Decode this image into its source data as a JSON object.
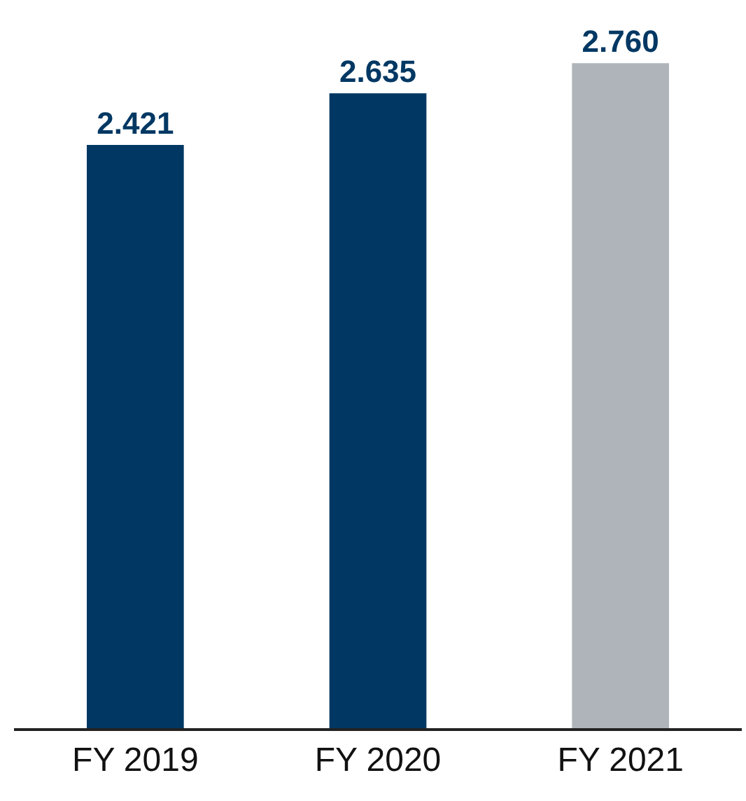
{
  "chart_data": {
    "type": "bar",
    "categories": [
      "FY 2019",
      "FY 2020",
      "FY 2021"
    ],
    "values": [
      2.421,
      2.635,
      2.76
    ],
    "colors": [
      "#003863",
      "#003863",
      "#aeb4ba"
    ],
    "value_labels": [
      "2.421",
      "2.635",
      "2.760"
    ]
  }
}
